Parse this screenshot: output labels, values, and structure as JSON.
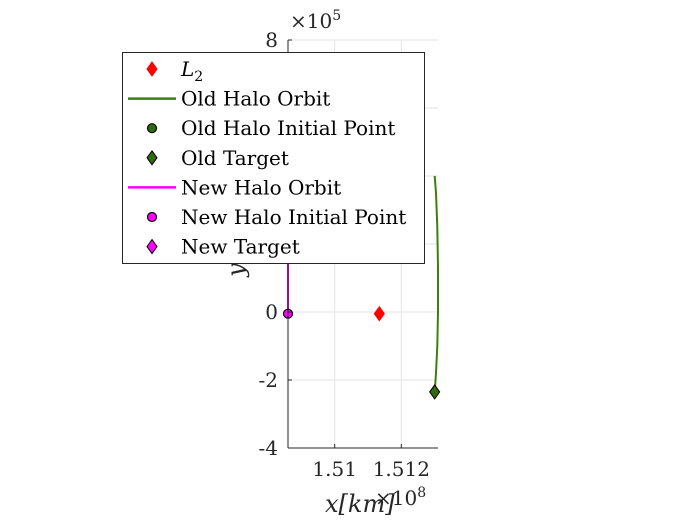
{
  "chart_data": {
    "type": "line",
    "title": "",
    "xlabel": "x[km]",
    "ylabel": "y",
    "x_multiplier": "×10",
    "x_multiplier_power": "8",
    "y_multiplier": "×10",
    "y_multiplier_power": "5",
    "xlim": [
      151030000,
      151255000
    ],
    "ylim": [
      -400000,
      800000
    ],
    "xticks": [
      151100000,
      151200000
    ],
    "xtick_labels": [
      "1.51",
      "1.512"
    ],
    "yticks": [
      -400000,
      -200000,
      0,
      200000,
      400000,
      600000,
      800000
    ],
    "ytick_labels": [
      "-4",
      "-2",
      "0",
      "2",
      "4",
      "6",
      "8"
    ],
    "grid": true,
    "legend_position": "top-left",
    "series": [
      {
        "name": "L2",
        "label_main": "L",
        "label_sub": "2",
        "kind": "point",
        "marker": "diamond",
        "color": "#ff0000",
        "edge": "#ff0000",
        "points": [
          [
            151167000,
            -5000
          ]
        ]
      },
      {
        "name": "Old Halo Orbit",
        "label": "Old Halo Orbit",
        "kind": "line",
        "color": "#3b7f0e",
        "points": [
          [
            151250000,
            400000
          ],
          [
            151252000,
            350000
          ],
          [
            151254000,
            250000
          ],
          [
            151255000,
            130000
          ],
          [
            151255000,
            0
          ],
          [
            151254000,
            -100000
          ],
          [
            151252000,
            -180000
          ],
          [
            151250000,
            -235000
          ]
        ]
      },
      {
        "name": "Old Halo Initial Point",
        "label": "Old Halo Initial Point",
        "kind": "point",
        "marker": "circle",
        "color": "#2f6b0a",
        "edge": "#000000",
        "points": []
      },
      {
        "name": "Old Target",
        "label": "Old Target",
        "kind": "point",
        "marker": "diamond",
        "color": "#2f6b0a",
        "edge": "#000000",
        "points": [
          [
            151250000,
            -235000
          ]
        ]
      },
      {
        "name": "New Halo Orbit",
        "label": "New Halo Orbit",
        "kind": "line",
        "color": "#ff00ff",
        "points": [
          [
            151030000,
            160000
          ],
          [
            151030000,
            -5000
          ]
        ]
      },
      {
        "name": "New Halo Initial Point",
        "label": "New Halo Initial Point",
        "kind": "point",
        "marker": "circle",
        "color": "#ff00ff",
        "edge": "#000000",
        "points": [
          [
            151030000,
            -5000
          ]
        ]
      },
      {
        "name": "New Target",
        "label": "New Target",
        "kind": "point",
        "marker": "diamond",
        "color": "#ff00ff",
        "edge": "#000000",
        "points": []
      }
    ]
  }
}
